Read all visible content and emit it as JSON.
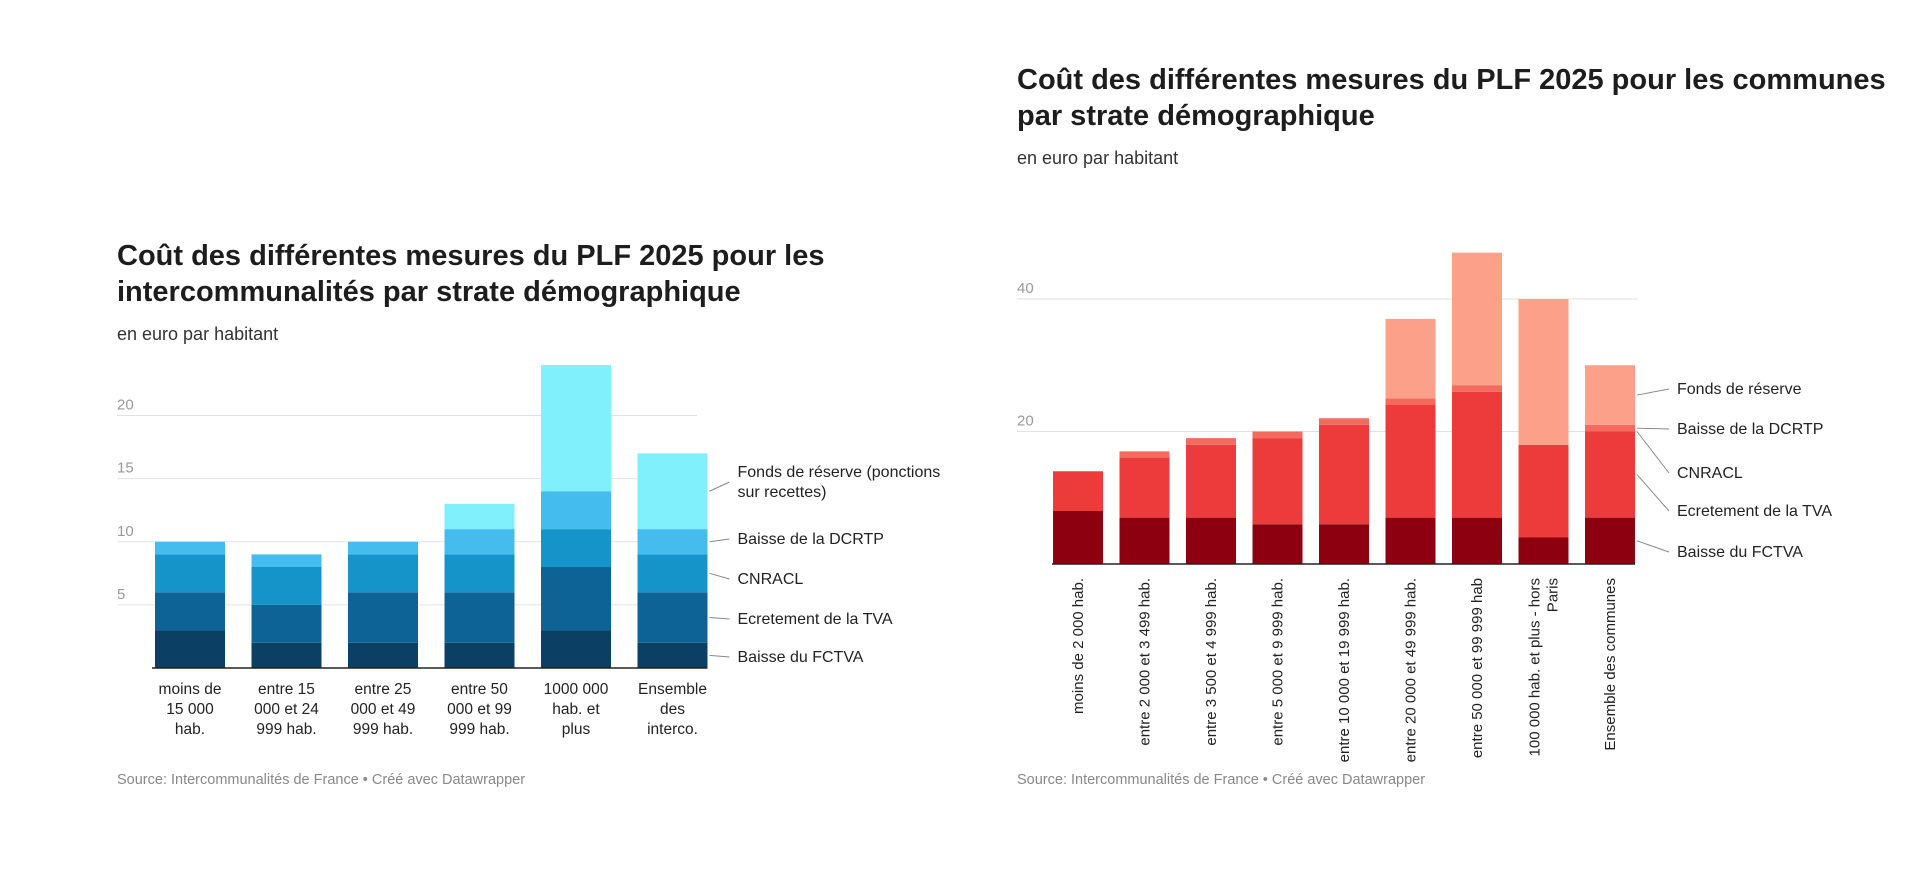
{
  "chart_data": [
    {
      "type": "bar",
      "stacked": true,
      "title": "Coût des différentes mesures du PLF 2025 pour les intercommunalités par strate démographique",
      "subtitle": "en euro par habitant",
      "source": "Source: Intercommunalités de France • Créé avec Datawrapper",
      "categories": [
        [
          "moins de",
          "15 000",
          "hab."
        ],
        [
          "entre 15",
          "000 et 24",
          "999 hab."
        ],
        [
          "entre 25",
          "000 et 49",
          "999 hab."
        ],
        [
          "entre 50",
          "000 et 99",
          "999 hab."
        ],
        [
          "1000 000",
          "hab. et",
          "plus"
        ],
        [
          "Ensemble",
          "des",
          "interco."
        ]
      ],
      "ylim": [
        0,
        24
      ],
      "yticks": [
        5,
        10,
        15,
        20
      ],
      "grid": true,
      "legend_position": "right, inline labels",
      "series": [
        {
          "name": "Baisse du FCTVA",
          "color": "#0b3f63",
          "values": [
            3,
            2,
            2,
            2,
            3,
            2
          ]
        },
        {
          "name": "Ecretement de la TVA",
          "color": "#0d6396",
          "values": [
            3,
            3,
            4,
            4,
            5,
            4
          ]
        },
        {
          "name": "CNRACL",
          "color": "#1594c9",
          "values": [
            3,
            3,
            3,
            3,
            3,
            3
          ]
        },
        {
          "name": "Baisse de la DCRTP",
          "color": "#44bdee",
          "values": [
            1,
            1,
            1,
            2,
            3,
            2
          ]
        },
        {
          "name": "Fonds de réserve (ponctions sur recettes)",
          "label_lines": [
            "Fonds de réserve (ponctions",
            "sur recettes)"
          ],
          "color": "#7ff0fc",
          "values": [
            0,
            0,
            0,
            2,
            10,
            6
          ]
        }
      ]
    },
    {
      "type": "bar",
      "stacked": true,
      "title": "Coût des différentes mesures du PLF 2025 pour les communes par strate démographique",
      "subtitle": "en euro par habitant",
      "source": "Source: Intercommunalités de France • Créé avec Datawrapper",
      "categories": [
        [
          "moins de 2 000 hab."
        ],
        [
          "entre 2 000 et 3 499 hab."
        ],
        [
          "entre 3 500 et 4 999 hab."
        ],
        [
          "entre 5 000 et 9 999 hab."
        ],
        [
          "entre 10 000 et 19 999 hab."
        ],
        [
          "entre 20 000 et 49 999 hab."
        ],
        [
          "entre 50 000 et 99 999 hab"
        ],
        [
          "100 000 hab. et plus - hors",
          "Paris"
        ],
        [
          "Ensemble des communes"
        ]
      ],
      "ylim": [
        0,
        48
      ],
      "yticks": [
        20,
        40
      ],
      "grid": true,
      "legend_position": "right, inline labels",
      "series": [
        {
          "name": "Baisse du FCTVA",
          "color": "#8c0010",
          "values": [
            8,
            7,
            7,
            6,
            6,
            7,
            7,
            4,
            7
          ]
        },
        {
          "name": "Ecretement de la TVA",
          "color": "#ed3b3b",
          "values": [
            6,
            9,
            11,
            13,
            15,
            17,
            19,
            14,
            13
          ]
        },
        {
          "name": "CNRACL",
          "color": "#f4453f",
          "values": [
            0,
            0,
            0,
            0,
            0,
            0,
            0,
            0,
            0
          ]
        },
        {
          "name": "Baisse de la DCRTP",
          "color": "#f46a5e",
          "values": [
            0,
            1,
            1,
            1,
            1,
            1,
            1,
            0,
            1
          ]
        },
        {
          "name": "Fonds de réserve",
          "color": "#fca08a",
          "values": [
            0,
            0,
            0,
            0,
            0,
            12,
            20,
            22,
            9
          ]
        }
      ]
    }
  ]
}
